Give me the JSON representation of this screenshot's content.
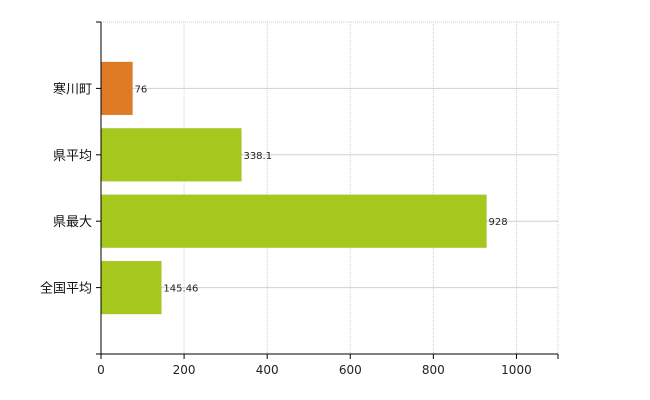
{
  "chart_data": {
    "type": "bar",
    "orientation": "horizontal",
    "categories": [
      "寒川町",
      "県平均",
      "県最大",
      "全国平均"
    ],
    "values": [
      76,
      338.1,
      928,
      145.46
    ],
    "value_labels": [
      "76",
      "338.1",
      "928",
      "145.46"
    ],
    "colors": [
      "#e07b25",
      "#a6c71c",
      "#a6c71c",
      "#a6c71c"
    ],
    "xlim": [
      0,
      1100
    ],
    "xticks": [
      0,
      200,
      400,
      600,
      800,
      1000
    ],
    "xtick_labels": [
      "0",
      "200",
      "400",
      "600",
      "800",
      "1000"
    ],
    "grid": true,
    "title": "",
    "xlabel": "",
    "ylabel": ""
  }
}
